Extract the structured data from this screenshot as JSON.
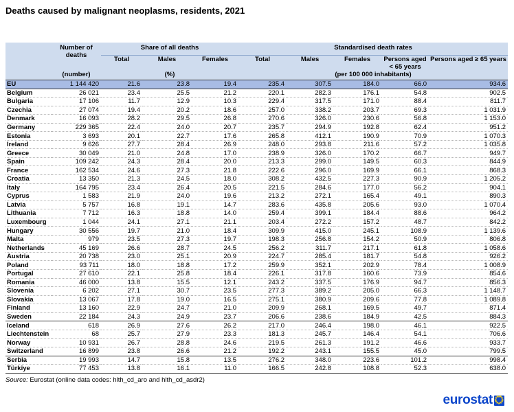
{
  "title": "Deaths caused by malignant neoplasms, residents, 2021",
  "header": {
    "number_of_deaths": "Number of deaths",
    "number_unit": "(number)",
    "share_group": "Share of all deaths",
    "share_unit": "(%)",
    "rates_group": "Standardised death rates",
    "rates_unit": "(per 100 000 inhabitants)",
    "total": "Total",
    "males": "Males",
    "females": "Females",
    "under65": "Persons aged < 65 years",
    "over65": "Persons aged ≥ 65 years"
  },
  "chart_data": {
    "type": "table",
    "title": "Deaths caused by malignant neoplasms, residents, 2021",
    "columns": [
      "Number of deaths",
      "Share of all deaths - Total",
      "Share of all deaths - Males",
      "Share of all deaths - Females",
      "Standardised death rates - Total",
      "Standardised death rates - Males",
      "Standardised death rates - Females",
      "Persons aged < 65 years",
      "Persons aged ≥ 65 years"
    ],
    "rows": [
      {
        "label": "EU",
        "values": [
          "1 144 420",
          "21.6",
          "23.8",
          "19.4",
          "235.4",
          "307.5",
          "184.0",
          "66.0",
          "934.6"
        ]
      },
      {
        "label": "Belgium",
        "values": [
          "26 021",
          "23.4",
          "25.5",
          "21.2",
          "220.1",
          "282.3",
          "176.1",
          "54.8",
          "902.5"
        ]
      },
      {
        "label": "Bulgaria",
        "values": [
          "17 106",
          "11.7",
          "12.9",
          "10.3",
          "229.4",
          "317.5",
          "171.0",
          "88.4",
          "811.7"
        ]
      },
      {
        "label": "Czechia",
        "values": [
          "27 074",
          "19.4",
          "20.2",
          "18.6",
          "257.0",
          "338.2",
          "203.7",
          "69.3",
          "1 031.9"
        ]
      },
      {
        "label": "Denmark",
        "values": [
          "16 093",
          "28.2",
          "29.5",
          "26.8",
          "270.6",
          "326.0",
          "230.6",
          "56.8",
          "1 153.0"
        ]
      },
      {
        "label": "Germany",
        "values": [
          "229 365",
          "22.4",
          "24.0",
          "20.7",
          "235.7",
          "294.9",
          "192.8",
          "62.4",
          "951.2"
        ]
      },
      {
        "label": "Estonia",
        "values": [
          "3 693",
          "20.1",
          "22.7",
          "17.6",
          "265.8",
          "412.1",
          "190.9",
          "70.9",
          "1 070.3"
        ]
      },
      {
        "label": "Ireland",
        "values": [
          "9 626",
          "27.7",
          "28.4",
          "26.9",
          "248.0",
          "293.8",
          "211.6",
          "57.2",
          "1 035.8"
        ]
      },
      {
        "label": "Greece",
        "values": [
          "30 049",
          "21.0",
          "24.8",
          "17.0",
          "238.9",
          "326.0",
          "170.2",
          "66.7",
          "949.7"
        ]
      },
      {
        "label": "Spain",
        "values": [
          "109 242",
          "24.3",
          "28.4",
          "20.0",
          "213.3",
          "299.0",
          "149.5",
          "60.3",
          "844.9"
        ]
      },
      {
        "label": "France",
        "values": [
          "162 534",
          "24.6",
          "27.3",
          "21.8",
          "222.6",
          "296.0",
          "169.9",
          "66.1",
          "868.3"
        ]
      },
      {
        "label": "Croatia",
        "values": [
          "13 350",
          "21.3",
          "24.5",
          "18.0",
          "308.2",
          "432.5",
          "227.3",
          "90.9",
          "1 205.2"
        ]
      },
      {
        "label": "Italy",
        "values": [
          "164 795",
          "23.4",
          "26.4",
          "20.5",
          "221.5",
          "284.6",
          "177.0",
          "56.2",
          "904.1"
        ]
      },
      {
        "label": "Cyprus",
        "values": [
          "1 583",
          "21.9",
          "24.0",
          "19.6",
          "213.2",
          "272.1",
          "165.4",
          "49.1",
          "890.3"
        ]
      },
      {
        "label": "Latvia",
        "values": [
          "5 757",
          "16.8",
          "19.1",
          "14.7",
          "283.6",
          "435.8",
          "205.6",
          "93.0",
          "1 070.4"
        ]
      },
      {
        "label": "Lithuania",
        "values": [
          "7 712",
          "16.3",
          "18.8",
          "14.0",
          "259.4",
          "399.1",
          "184.4",
          "88.6",
          "964.2"
        ]
      },
      {
        "label": "Luxembourg",
        "values": [
          "1 044",
          "24.1",
          "27.1",
          "21.1",
          "203.4",
          "272.2",
          "157.2",
          "48.7",
          "842.2"
        ]
      },
      {
        "label": "Hungary",
        "values": [
          "30 556",
          "19.7",
          "21.0",
          "18.4",
          "309.9",
          "415.0",
          "245.1",
          "108.9",
          "1 139.6"
        ]
      },
      {
        "label": "Malta",
        "values": [
          "979",
          "23.5",
          "27.3",
          "19.7",
          "198.3",
          "256.8",
          "154.2",
          "50.9",
          "806.8"
        ]
      },
      {
        "label": "Netherlands",
        "values": [
          "45 169",
          "26.6",
          "28.7",
          "24.5",
          "256.2",
          "311.7",
          "217.1",
          "61.8",
          "1 058.6"
        ]
      },
      {
        "label": "Austria",
        "values": [
          "20 738",
          "23.0",
          "25.1",
          "20.9",
          "224.7",
          "285.4",
          "181.7",
          "54.8",
          "926.2"
        ]
      },
      {
        "label": "Poland",
        "values": [
          "93 711",
          "18.0",
          "18.8",
          "17.2",
          "259.9",
          "352.1",
          "202.9",
          "78.4",
          "1 008.9"
        ]
      },
      {
        "label": "Portugal",
        "values": [
          "27 610",
          "22.1",
          "25.8",
          "18.4",
          "226.1",
          "317.8",
          "160.6",
          "73.9",
          "854.6"
        ]
      },
      {
        "label": "Romania",
        "values": [
          "46 000",
          "13.8",
          "15.5",
          "12.1",
          "243.2",
          "337.5",
          "176.9",
          "94.7",
          "856.3"
        ]
      },
      {
        "label": "Slovenia",
        "values": [
          "6 202",
          "27.1",
          "30.7",
          "23.5",
          "277.3",
          "389.2",
          "205.0",
          "66.3",
          "1 148.7"
        ]
      },
      {
        "label": "Slovakia",
        "values": [
          "13 067",
          "17.8",
          "19.0",
          "16.5",
          "275.1",
          "380.9",
          "209.6",
          "77.8",
          "1 089.8"
        ]
      },
      {
        "label": "Finland",
        "values": [
          "13 160",
          "22.9",
          "24.7",
          "21.0",
          "209.9",
          "268.1",
          "169.5",
          "49.7",
          "871.4"
        ]
      },
      {
        "label": "Sweden",
        "values": [
          "22 184",
          "24.3",
          "24.9",
          "23.7",
          "206.6",
          "238.6",
          "184.9",
          "42.5",
          "884.3"
        ]
      },
      {
        "label": "Iceland",
        "values": [
          "618",
          "26.9",
          "27.6",
          "26.2",
          "217.0",
          "246.4",
          "198.0",
          "46.1",
          "922.5"
        ]
      },
      {
        "label": "Liechtenstein",
        "values": [
          "68",
          "25.7",
          "27.9",
          "23.3",
          "181.3",
          "245.7",
          "146.4",
          "54.1",
          "706.6"
        ]
      },
      {
        "label": "Norway",
        "values": [
          "10 931",
          "26.7",
          "28.8",
          "24.6",
          "219.5",
          "261.3",
          "191.2",
          "46.6",
          "933.7"
        ]
      },
      {
        "label": "Switzerland",
        "values": [
          "16 899",
          "23.8",
          "26.6",
          "21.2",
          "192.2",
          "243.1",
          "155.5",
          "45.0",
          "799.5"
        ]
      },
      {
        "label": "Serbia",
        "values": [
          "19 993",
          "14.7",
          "15.8",
          "13.5",
          "276.2",
          "348.0",
          "223.6",
          "101.2",
          "998.4"
        ]
      },
      {
        "label": "Türkiye",
        "values": [
          "77 453",
          "13.8",
          "16.1",
          "11.0",
          "166.5",
          "242.8",
          "108.8",
          "52.3",
          "638.0"
        ]
      }
    ]
  },
  "source": {
    "label": "Source:",
    "text": "Eurostat (online data codes: hlth_cd_aro and hlth_cd_asdr2)"
  },
  "logo": {
    "text": "eurostat",
    "flag_color": "#0e47cb",
    "star_color": "#ffd617"
  }
}
